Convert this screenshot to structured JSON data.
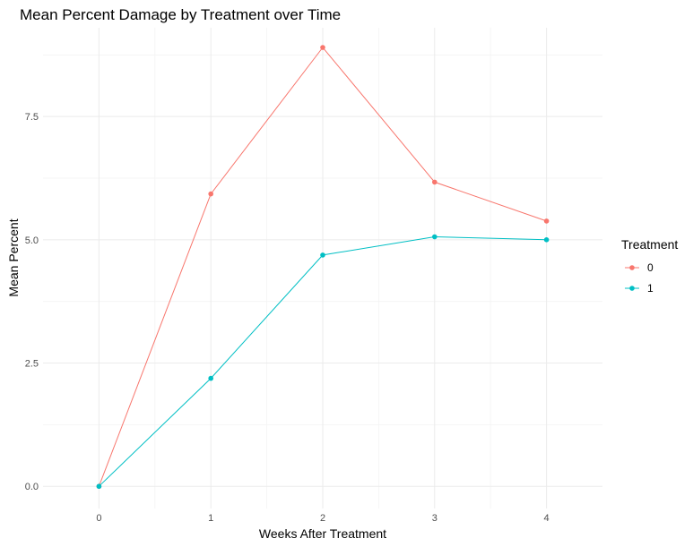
{
  "chart_data": {
    "type": "line",
    "title": "Mean Percent Damage by Treatment over Time",
    "xlabel": "Weeks After Treatment",
    "ylabel": "Mean Percent",
    "x": [
      0,
      1,
      2,
      3,
      4
    ],
    "x_ticks": [
      "0",
      "1",
      "2",
      "3",
      "4"
    ],
    "y_ticks": [
      "0.0",
      "2.5",
      "5.0",
      "7.5"
    ],
    "y_tick_values": [
      0,
      2.5,
      5,
      7.5
    ],
    "xlim": [
      -0.5,
      4.5
    ],
    "ylim": [
      -0.45,
      9.3
    ],
    "grid": true,
    "legend": {
      "title": "Treatment",
      "position": "right"
    },
    "series": [
      {
        "name": "0",
        "color": "#F8766D",
        "values": [
          0.0,
          5.93,
          8.9,
          6.17,
          5.38
        ]
      },
      {
        "name": "1",
        "color": "#00BFC4",
        "values": [
          0.0,
          2.19,
          4.69,
          5.06,
          5.0
        ]
      }
    ]
  }
}
